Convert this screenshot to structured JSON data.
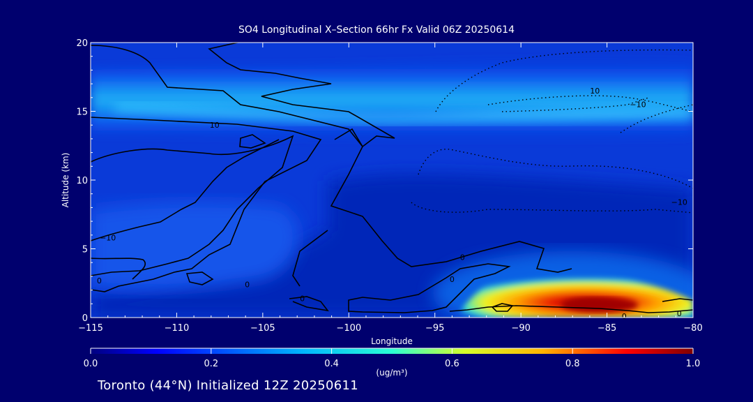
{
  "title": "SO4 Longitudinal X–Section 66hr  Fx Valid 06Z 20250614",
  "footer": "Toronto (44°N) Initialized 12Z 20250611",
  "colorbar": {
    "units": "(ug/m³)",
    "ticks": [
      "0.0",
      "0.2",
      "0.4",
      "0.6",
      "0.8",
      "1.0"
    ],
    "range": [
      0.0,
      1.0
    ],
    "colormap": "jet"
  },
  "chart_data": {
    "type": "heatmap",
    "xlabel": "Longitude",
    "ylabel": "Altitude (km)",
    "xlim": [
      -115,
      -80
    ],
    "ylim": [
      0,
      20
    ],
    "x_ticks": [
      -115,
      -110,
      -105,
      -100,
      -95,
      -90,
      -85,
      -80
    ],
    "y_ticks": [
      0,
      5,
      10,
      15,
      20
    ],
    "x_tick_labels": [
      "−115",
      "−110",
      "−105",
      "−100",
      "−95",
      "−90",
      "−85",
      "−80"
    ],
    "y_tick_labels": [
      "0",
      "5",
      "10",
      "15",
      "20"
    ],
    "features": [
      {
        "name": "upper-layer",
        "lon_range": [
          -115,
          -80
        ],
        "alt_center": 15.3,
        "peak_value": 0.45
      },
      {
        "name": "surface-plume",
        "lon_range": [
          -94,
          -81
        ],
        "alt_range": [
          0,
          3
        ],
        "peak_value": 1.0,
        "peak_lon": -85,
        "peak_alt": 0.8
      },
      {
        "name": "mid-west-layer",
        "lon_range": [
          -115,
          -103
        ],
        "alt_range": [
          3,
          8
        ],
        "peak_value": 0.2
      }
    ],
    "contour_labels": [
      {
        "text": "10",
        "lon": -107.8,
        "alt": 14.0
      },
      {
        "text": "10",
        "lon": -85.7,
        "alt": 16.5
      },
      {
        "text": "−10",
        "lon": -83.2,
        "alt": 15.5
      },
      {
        "text": "−10",
        "lon": -114.0,
        "alt": 5.8
      },
      {
        "text": "0",
        "lon": -114.5,
        "alt": 2.7
      },
      {
        "text": "0",
        "lon": -105.9,
        "alt": 2.4
      },
      {
        "text": "0",
        "lon": -102.7,
        "alt": 1.4
      },
      {
        "text": "0",
        "lon": -94.0,
        "alt": 2.8
      },
      {
        "text": "0",
        "lon": -93.4,
        "alt": 4.4
      },
      {
        "text": "0",
        "lon": -84.0,
        "alt": 0.1
      },
      {
        "text": "0",
        "lon": -80.8,
        "alt": 0.3
      },
      {
        "text": "−10",
        "lon": -80.8,
        "alt": 8.4
      }
    ]
  }
}
